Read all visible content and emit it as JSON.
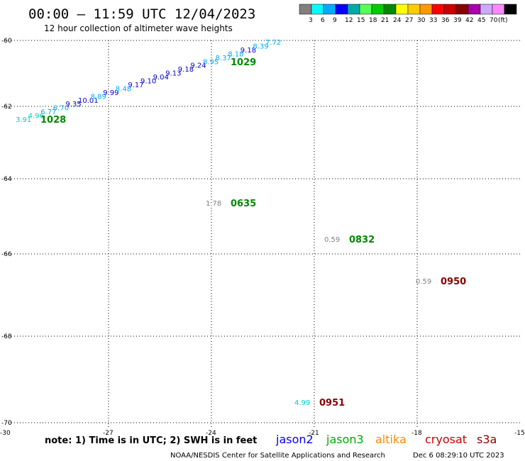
{
  "header": {
    "title": "00:00 – 11:59 UTC 12/04/2023",
    "subtitle": "12 hour collection of altimeter wave heights"
  },
  "color_scale": {
    "colors": [
      "#808080",
      "#00ffff",
      "#00aaff",
      "#0000ff",
      "#00aaaa",
      "#55ff55",
      "#00cc00",
      "#008800",
      "#ffff00",
      "#ffcc00",
      "#ff9900",
      "#ff0000",
      "#cc0000",
      "#880000",
      "#aa00aa",
      "#ccaaff",
      "#ff88ff",
      "#000000"
    ],
    "labels": [
      "3",
      "6",
      "9",
      "12",
      "15",
      "18",
      "21",
      "24",
      "27",
      "30",
      "33",
      "36",
      "39",
      "42",
      "45",
      "70",
      "(ft)"
    ]
  },
  "map": {
    "x_ticks": [
      "-30",
      "-27",
      "-24",
      "-21",
      "-18",
      "-15"
    ],
    "y_ticks": [
      "-60",
      "-62",
      "-64",
      "-66",
      "-68",
      "-70"
    ],
    "xlim": [
      -30,
      -15
    ],
    "ylim": [
      -70,
      -60
    ],
    "grid": "dotted"
  },
  "passes": [
    {
      "time": "1028",
      "time_color": "#008800",
      "points": [
        {
          "v": "3.91",
          "c": "#00cccc"
        },
        {
          "v": "4.96",
          "c": "#00cccc"
        },
        {
          "v": "6.77",
          "c": "#00aaff"
        },
        {
          "v": "6.70",
          "c": "#00aaff"
        },
        {
          "v": "9.35",
          "c": "#0000cc"
        },
        {
          "v": "10.01",
          "c": "#0000cc"
        },
        {
          "v": "8.89",
          "c": "#00aaff"
        },
        {
          "v": "9.99",
          "c": "#0000cc"
        },
        {
          "v": "8.48",
          "c": "#00aaff"
        },
        {
          "v": "9.17",
          "c": "#0000cc"
        },
        {
          "v": "9.10",
          "c": "#0000cc"
        },
        {
          "v": "9.04",
          "c": "#0000cc"
        },
        {
          "v": "9.13",
          "c": "#0000cc"
        },
        {
          "v": "9.18",
          "c": "#0000cc"
        },
        {
          "v": "9.24",
          "c": "#0000cc"
        },
        {
          "v": "8.95",
          "c": "#00aaff"
        },
        {
          "v": "8.37",
          "c": "#00aaff"
        },
        {
          "v": "8.18",
          "c": "#00aaff"
        },
        {
          "v": "9.18",
          "c": "#0000cc"
        },
        {
          "v": "8.39",
          "c": "#00aaff"
        },
        {
          "v": "7.72",
          "c": "#00aaff"
        }
      ],
      "time2": "1029",
      "time2_color": "#008800"
    }
  ],
  "single_obs": [
    {
      "swh": "1.78",
      "swh_color": "#808080",
      "time": "0635",
      "time_color": "#008800"
    },
    {
      "swh": "0.59",
      "swh_color": "#808080",
      "time": "0832",
      "time_color": "#008800"
    },
    {
      "swh": "0.59",
      "swh_color": "#808080",
      "time": "0950",
      "time_color": "#880000"
    },
    {
      "swh": "4.99",
      "swh_color": "#00cccc",
      "time": "0951",
      "time_color": "#880000"
    }
  ],
  "footer": {
    "note": "note: 1) Time is in UTC; 2) SWH is in feet",
    "satellites": [
      {
        "name": "jason2",
        "color": "#0000ff"
      },
      {
        "name": "jason3",
        "color": "#00aa00"
      },
      {
        "name": "altika",
        "color": "#ff8800"
      },
      {
        "name": "cryosat",
        "color": "#cc0000"
      },
      {
        "name": "s3a",
        "color": "#880000"
      }
    ],
    "credit": "NOAA/NESDIS Center for Satellite Applications and Research",
    "timestamp": "Dec  6 08:29:10 UTC 2023"
  }
}
